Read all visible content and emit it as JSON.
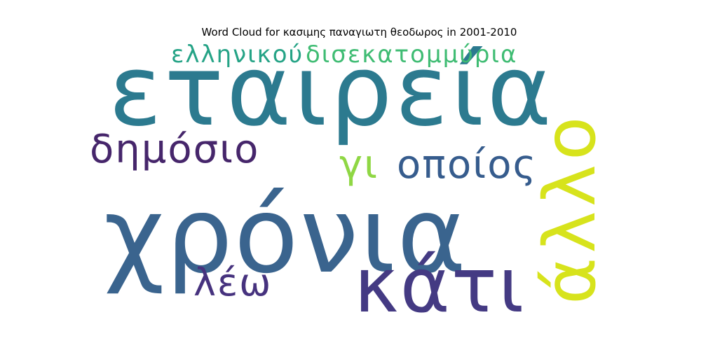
{
  "chart_data": {
    "type": "wordcloud",
    "title": "Word Cloud for κασιμης παναγιωτη θεοδωρος in 2001-2010",
    "words": [
      {
        "text": "εταιρεία",
        "color": "#2c7a8f"
      },
      {
        "text": "χρόνια",
        "color": "#3a648e"
      },
      {
        "text": "κάτι",
        "color": "#443a83"
      },
      {
        "text": "άλλο",
        "color": "#d7e31c"
      },
      {
        "text": "δημόσιο",
        "color": "#46266b"
      },
      {
        "text": "οποίος",
        "color": "#365c8d"
      },
      {
        "text": "ελληνικού",
        "color": "#25a386"
      },
      {
        "text": "δισεκατομμύρια",
        "color": "#3fbc73"
      },
      {
        "text": "γι",
        "color": "#8fd744"
      },
      {
        "text": "λέω",
        "color": "#46327e"
      }
    ]
  }
}
